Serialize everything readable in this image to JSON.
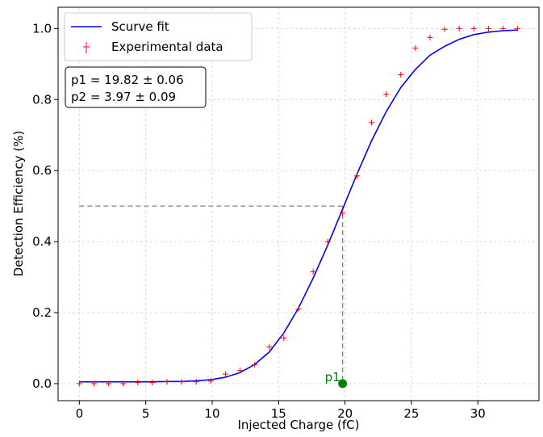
{
  "chart_data": {
    "type": "line",
    "xlabel": "Injected Charge (fC)",
    "ylabel": "Detection Efficiency (%)",
    "xlim": [
      -1.6,
      34.6
    ],
    "ylim": [
      -0.048,
      1.06
    ],
    "xticks": [
      0,
      5,
      10,
      15,
      20,
      25,
      30
    ],
    "yticks": [
      0.0,
      0.2,
      0.4,
      0.6,
      0.8,
      1.0
    ],
    "xtick_labels": [
      "0",
      "5",
      "10",
      "15",
      "20",
      "25",
      "30"
    ],
    "ytick_labels": [
      "0.0",
      "0.2",
      "0.4",
      "0.6",
      "0.8",
      "1.0"
    ],
    "grid": true,
    "legend_position": "top-left",
    "series": [
      {
        "name": "Scurve fit",
        "kind": "line",
        "color": "#0000ff",
        "x": [
          0,
          1.1,
          2.2,
          3.3,
          4.4,
          5.5,
          6.6,
          7.7,
          8.8,
          9.9,
          11.0,
          12.1,
          13.2,
          14.3,
          15.4,
          16.5,
          17.6,
          18.7,
          19.8,
          20.9,
          22.0,
          23.1,
          24.2,
          25.3,
          26.4,
          27.5,
          28.6,
          29.7,
          30.8,
          31.9,
          33.0
        ],
        "y": [
          0.005,
          0.005,
          0.005,
          0.005,
          0.005,
          0.005,
          0.006,
          0.006,
          0.008,
          0.011,
          0.018,
          0.031,
          0.054,
          0.089,
          0.143,
          0.213,
          0.297,
          0.39,
          0.49,
          0.59,
          0.684,
          0.766,
          0.834,
          0.885,
          0.925,
          0.95,
          0.97,
          0.983,
          0.99,
          0.994,
          0.996
        ]
      },
      {
        "name": "Experimental data",
        "kind": "scatter",
        "marker": "+",
        "color": "#ff0000",
        "x": [
          0,
          1.1,
          2.2,
          3.3,
          4.4,
          5.5,
          6.6,
          7.7,
          8.8,
          9.9,
          11.0,
          12.1,
          13.2,
          14.3,
          15.4,
          16.5,
          17.6,
          18.7,
          19.8,
          20.9,
          22.0,
          23.1,
          24.2,
          25.3,
          26.4,
          27.5,
          28.6,
          29.7,
          30.8,
          31.9,
          33.0
        ],
        "y": [
          0.0,
          0.0,
          0.0,
          0.0,
          0.003,
          0.003,
          0.005,
          0.005,
          0.005,
          0.007,
          0.027,
          0.037,
          0.053,
          0.103,
          0.128,
          0.21,
          0.315,
          0.4,
          0.48,
          0.585,
          0.735,
          0.815,
          0.87,
          0.945,
          0.975,
          0.998,
          1.0,
          1.0,
          1.0,
          1.0,
          1.0
        ]
      }
    ],
    "reference": {
      "threshold_y": 0.5,
      "p1_x": 19.82,
      "p1_label": "p1",
      "p1_color": "#008000",
      "line_color": "#808080"
    },
    "annotation_lines": [
      "p1 = 19.82 ± 0.06",
      "p2 = 3.97 ± 0.09"
    ]
  }
}
